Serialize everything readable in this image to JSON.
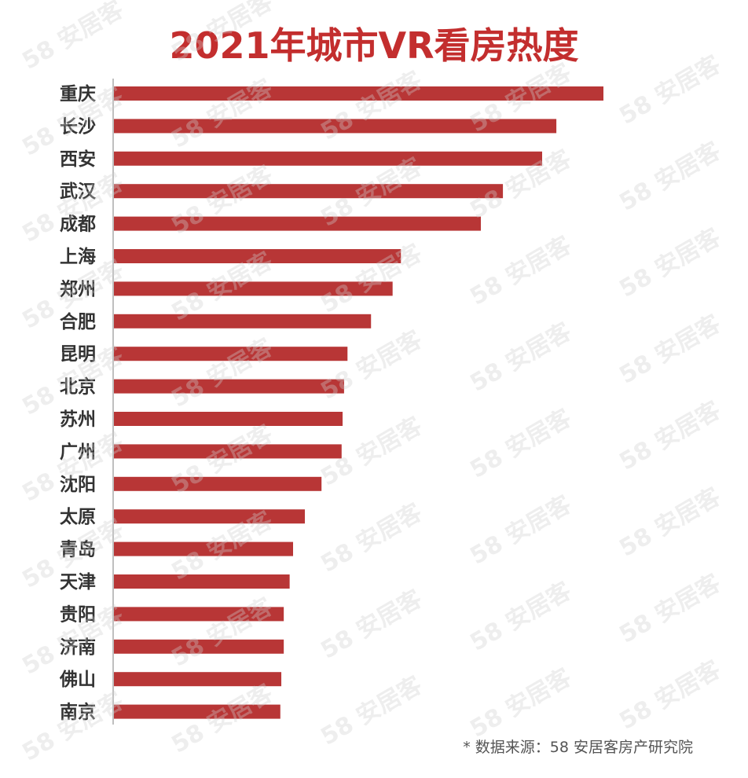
{
  "title": "2021年城市VR看房热度",
  "source": "* 数据来源：58 安居客房产研究院",
  "watermark": "58 安居客",
  "colors": {
    "title": "#c32e2e",
    "bar": "#b83636",
    "axis": "#bfbfbf",
    "label": "#333333"
  },
  "chart_data": {
    "type": "bar",
    "orientation": "horizontal",
    "title": "2021年城市VR看房热度",
    "xlabel": "",
    "ylabel": "",
    "grid": false,
    "categories": [
      "重庆",
      "长沙",
      "西安",
      "武汉",
      "成都",
      "上海",
      "郑州",
      "合肥",
      "昆明",
      "北京",
      "苏州",
      "广州",
      "沈阳",
      "太原",
      "青岛",
      "天津",
      "贵阳",
      "济南",
      "佛山",
      "南京"
    ],
    "values": [
      100,
      90.4,
      87.5,
      79.5,
      75,
      58.7,
      57,
      52.6,
      47.8,
      47.1,
      46.8,
      46.6,
      42.5,
      39.1,
      36.7,
      36,
      34.8,
      34.8,
      34.3,
      34.1
    ],
    "xlim": [
      0,
      100
    ]
  }
}
